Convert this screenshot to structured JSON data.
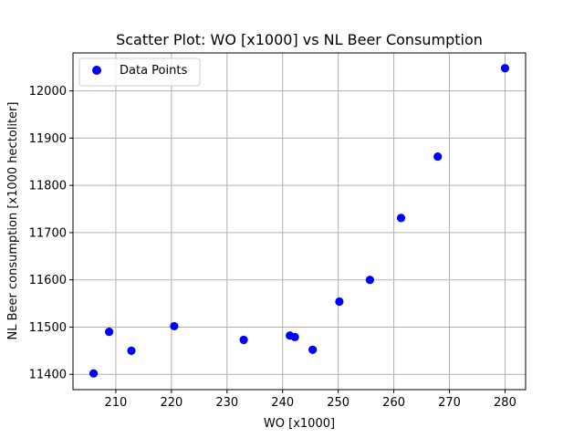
{
  "chart_data": {
    "type": "scatter",
    "title": "Scatter Plot: WO [x1000] vs NL Beer Consumption",
    "xlabel": "WO [x1000]",
    "ylabel": "NL Beer consumption [x1000 hectoliter]",
    "xlim": [
      202.3,
      283.7
    ],
    "ylim": [
      11367.6,
      12080.4
    ],
    "xticks": [
      210,
      220,
      230,
      240,
      250,
      260,
      270,
      280
    ],
    "yticks": [
      11400,
      11500,
      11600,
      11700,
      11800,
      11900,
      12000
    ],
    "grid": true,
    "legend": {
      "placement": "top-left",
      "entries": [
        "Data Points"
      ]
    },
    "series": [
      {
        "name": "Data Points",
        "color": "#0000ff",
        "points": [
          {
            "x": 206.0,
            "y": 11402
          },
          {
            "x": 208.8,
            "y": 11490
          },
          {
            "x": 212.8,
            "y": 11450
          },
          {
            "x": 220.5,
            "y": 11502
          },
          {
            "x": 233.0,
            "y": 11473
          },
          {
            "x": 241.3,
            "y": 11482
          },
          {
            "x": 242.2,
            "y": 11479
          },
          {
            "x": 245.4,
            "y": 11452
          },
          {
            "x": 250.2,
            "y": 11554
          },
          {
            "x": 255.7,
            "y": 11600
          },
          {
            "x": 261.3,
            "y": 11731
          },
          {
            "x": 267.9,
            "y": 11861
          },
          {
            "x": 280.0,
            "y": 12048
          }
        ]
      }
    ]
  },
  "colors": {
    "grid": "#b0b0b0",
    "axis": "#000000",
    "legend_border": "#cccccc",
    "point": "#0000ff"
  }
}
